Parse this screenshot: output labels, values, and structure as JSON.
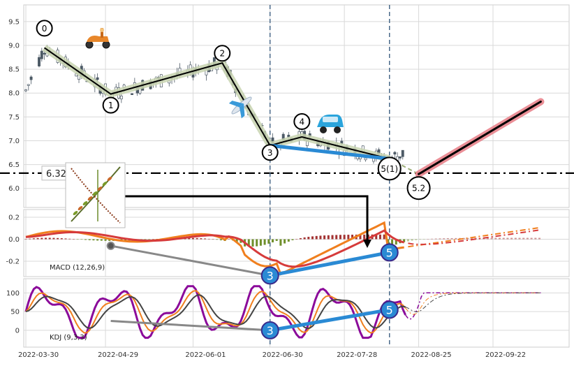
{
  "chart_data": [
    {
      "type": "candlestick",
      "panel": "price",
      "yticks": [
        6.0,
        6.5,
        7.0,
        7.5,
        8.0,
        8.5,
        9.0,
        9.5
      ],
      "ylim": [
        5.6,
        9.85
      ],
      "xticks": [
        "2022-03-30",
        "2022-04-29",
        "2022-06-01",
        "2022-06-30",
        "2022-07-28",
        "2022-08-25",
        "2022-09-22"
      ],
      "grid": true,
      "wave_points": [
        {
          "label": "0",
          "date": "2022-04-06",
          "price": 8.95
        },
        {
          "label": "1",
          "date": "2022-05-01",
          "price": 7.98
        },
        {
          "label": "2",
          "date": "2022-06-12",
          "price": 8.63
        },
        {
          "label": "3",
          "date": "2022-06-30",
          "price": 6.9
        },
        {
          "label": "4",
          "date": "2022-07-12",
          "price": 7.08
        },
        {
          "label": "5(1)",
          "date": "2022-08-14",
          "price": 6.62
        },
        {
          "label": "5.2",
          "date": "2022-08-25",
          "price": 6.3
        }
      ],
      "projection": {
        "from_date": "2022-08-25",
        "from_price": 6.3,
        "to_date": "2022-10-10",
        "to_price": 7.82
      },
      "support_level": {
        "value": 6.32,
        "label": "6.32"
      },
      "vertical_markers": [
        "2022-06-30",
        "2022-08-14"
      ],
      "icons": [
        "scooter-icon",
        "airplane-icon",
        "car-icon",
        "plant-chart-icon"
      ]
    },
    {
      "type": "line",
      "panel": "macd",
      "label": "MACD (12,26,9)",
      "yticks": [
        -0.2,
        0.0,
        0.2
      ],
      "ylim": [
        -0.34,
        0.27
      ],
      "markers": [
        {
          "label": "3",
          "date": "2022-06-30",
          "value": -0.33
        },
        {
          "label": "5",
          "date": "2022-08-14",
          "value": -0.12
        }
      ]
    },
    {
      "type": "line",
      "panel": "kdj",
      "label": "KDJ (9,3,3)",
      "yticks": [
        0,
        50,
        100
      ],
      "ylim": [
        -45,
        138
      ],
      "markers": [
        {
          "label": "3",
          "date": "2022-06-30",
          "value": 0
        },
        {
          "label": "5",
          "date": "2022-08-14",
          "value": 55
        }
      ]
    }
  ],
  "colors": {
    "up": "#4d5a66",
    "wave": "#000000",
    "wave_halo": "#c8d3b0",
    "projection": "#e8838c",
    "blue": "#2a8ad4",
    "macd": "#f07f1e",
    "signal": "#d63b3b",
    "hist_pos": "#a33333",
    "hist_neg": "#6f8f2a",
    "k": "#444444",
    "d": "#f07f1e",
    "j": "#8b0a9a",
    "vline": "#4a6a8a"
  }
}
